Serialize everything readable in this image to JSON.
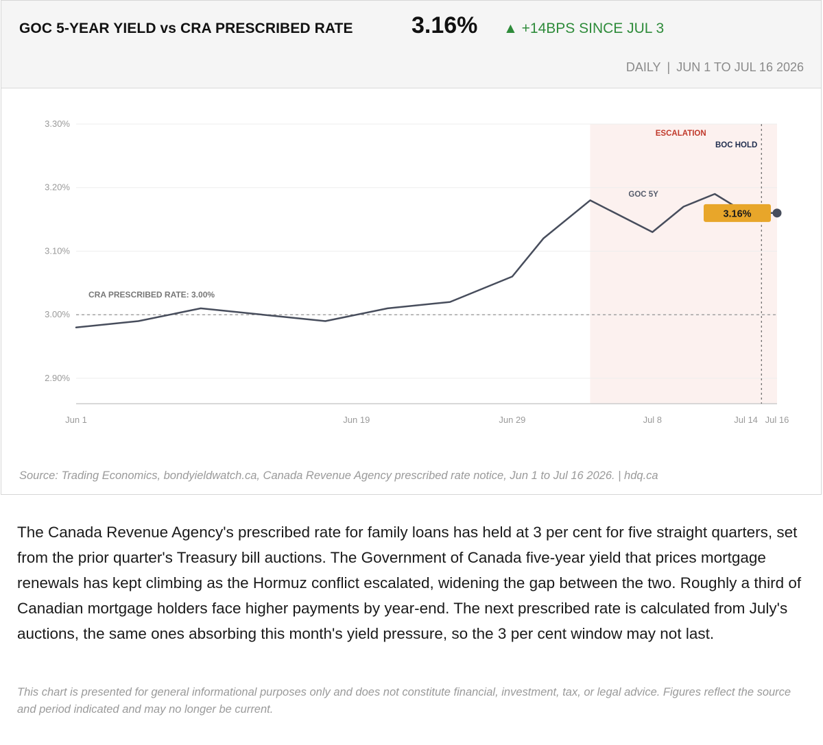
{
  "header": {
    "title": "GOC 5-YEAR YIELD vs CRA PRESCRIBED RATE",
    "current_value": "3.16%",
    "delta_arrow": "▲",
    "delta_text": "+14BPS SINCE JUL 3",
    "frequency": "DAILY",
    "separator": "|",
    "date_range": "JUN 1 TO JUL 16 2026"
  },
  "chart_data": {
    "type": "line",
    "x": [
      "2026-06-01",
      "2026-06-05",
      "2026-06-09",
      "2026-06-13",
      "2026-06-17",
      "2026-06-21",
      "2026-06-25",
      "2026-06-29",
      "2026-07-01",
      "2026-07-04",
      "2026-07-08",
      "2026-07-10",
      "2026-07-12",
      "2026-07-14",
      "2026-07-16"
    ],
    "series": [
      {
        "name": "GOC 5Y",
        "values": [
          2.98,
          2.99,
          3.01,
          3.0,
          2.99,
          3.01,
          3.02,
          3.06,
          3.12,
          3.18,
          3.13,
          3.17,
          3.19,
          3.16,
          3.16
        ]
      }
    ],
    "x_ticks": [
      {
        "date": "2026-06-01",
        "label": "Jun 1"
      },
      {
        "date": "2026-06-19",
        "label": "Jun 19"
      },
      {
        "date": "2026-06-29",
        "label": "Jun 29"
      },
      {
        "date": "2026-07-08",
        "label": "Jul 8"
      },
      {
        "date": "2026-07-14",
        "label": "Jul 14"
      },
      {
        "date": "2026-07-16",
        "label": "Jul 16"
      }
    ],
    "y_ticks": [
      {
        "value": 2.9,
        "label": "2.90%"
      },
      {
        "value": 3.0,
        "label": "3.00%"
      },
      {
        "value": 3.1,
        "label": "3.10%"
      },
      {
        "value": 3.2,
        "label": "3.20%"
      },
      {
        "value": 3.3,
        "label": "3.30%"
      }
    ],
    "xlim": [
      "2026-06-01",
      "2026-07-16"
    ],
    "ylim": [
      2.86,
      3.3
    ],
    "grid": true,
    "reference_line": {
      "value": 3.0,
      "label": "CRA PRESCRIBED RATE: 3.00%"
    },
    "shaded_region": {
      "start": "2026-07-04",
      "end": "2026-07-16",
      "label": "ESCALATION"
    },
    "event_line": {
      "date": "2026-07-15",
      "label": "BOC HOLD"
    },
    "series_label": "GOC 5Y",
    "end_value_label": "3.16%",
    "colors": {
      "line": "#474d5c",
      "shade": "#fcf1ef",
      "escalation_label": "#c0392b",
      "event_label": "#1f2d4e",
      "callout": "#e8a62a",
      "grid": "#eeeeee",
      "reference": "#888888"
    }
  },
  "footer": {
    "source": "Source: Trading Economics, bondyieldwatch.ca, Canada Revenue Agency prescribed rate notice, Jun 1 to Jul 16 2026.  |  hdq.ca"
  },
  "body": {
    "paragraph": "The Canada Revenue Agency's prescribed rate for family loans has held at 3 per cent for five straight quarters, set from the prior quarter's Treasury bill auctions. The Government of Canada five-year yield that prices mortgage renewals has kept climbing as the Hormuz conflict escalated, widening the gap between the two. Roughly a third of Canadian mortgage holders face higher payments by year-end. The next prescribed rate is calculated from July's auctions, the same ones absorbing this month's yield pressure, so the 3 per cent window may not last.",
    "disclaimer": "This chart is presented for general informational purposes only and does not constitute financial, investment, tax, or legal advice. Figures reflect the source and period indicated and may no longer be current."
  }
}
